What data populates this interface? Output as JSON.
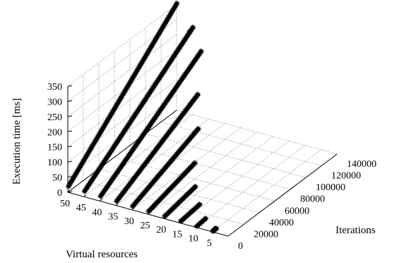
{
  "chart_data": {
    "type": "scatter",
    "projection": "3d",
    "xlabel": "Virtual resources",
    "ylabel": "Iterations",
    "zlabel": "Execution time [ms]",
    "xlim": [
      0,
      50
    ],
    "ylim": [
      0,
      140000
    ],
    "zlim": [
      0,
      350
    ],
    "xticks": [
      "50",
      "45",
      "40",
      "35",
      "30",
      "25",
      "20",
      "15",
      "10",
      "5"
    ],
    "yticks": [
      "0",
      "20000",
      "40000",
      "60000",
      "80000",
      "100000",
      "120000",
      "140000"
    ],
    "zticks": [
      "0",
      "50",
      "100",
      "150",
      "200",
      "250",
      "300",
      "350"
    ],
    "grid": true,
    "legend": "none",
    "marker": "asterisk",
    "series": [
      {
        "virtual_resources": 50,
        "iterations": [
          0,
          140000
        ],
        "execution_time_ms": [
          20,
          355
        ]
      },
      {
        "virtual_resources": 45,
        "iterations": [
          0,
          140000
        ],
        "execution_time_ms": [
          18,
          290
        ]
      },
      {
        "virtual_resources": 40,
        "iterations": [
          0,
          130000
        ],
        "execution_time_ms": [
          16,
          245
        ]
      },
      {
        "virtual_resources": 35,
        "iterations": [
          0,
          105000
        ],
        "execution_time_ms": [
          14,
          165
        ]
      },
      {
        "virtual_resources": 30,
        "iterations": [
          0,
          85000
        ],
        "execution_time_ms": [
          12,
          105
        ]
      },
      {
        "virtual_resources": 25,
        "iterations": [
          0,
          60000
        ],
        "execution_time_ms": [
          10,
          55
        ]
      },
      {
        "virtual_resources": 20,
        "iterations": [
          0,
          40000
        ],
        "execution_time_ms": [
          8,
          30
        ]
      },
      {
        "virtual_resources": 15,
        "iterations": [
          0,
          25000
        ],
        "execution_time_ms": [
          6,
          15
        ]
      },
      {
        "virtual_resources": 10,
        "iterations": [
          0,
          12000
        ],
        "execution_time_ms": [
          4,
          8
        ]
      },
      {
        "virtual_resources": 5,
        "iterations": [
          0,
          5000
        ],
        "execution_time_ms": [
          2,
          4
        ]
      }
    ],
    "sparse_points": [
      [
        45,
        140000,
        290
      ],
      [
        45,
        135000,
        285
      ],
      [
        40,
        130000,
        245
      ],
      [
        40,
        120000,
        225
      ],
      [
        35,
        105000,
        165
      ],
      [
        35,
        95000,
        150
      ],
      [
        30,
        85000,
        105
      ],
      [
        30,
        80000,
        100
      ],
      [
        25,
        60000,
        55
      ],
      [
        25,
        55000,
        50
      ],
      [
        20,
        40000,
        30
      ],
      [
        20,
        35000,
        25
      ],
      [
        15,
        25000,
        15
      ],
      [
        15,
        20000,
        12
      ],
      [
        10,
        12000,
        8
      ]
    ]
  }
}
